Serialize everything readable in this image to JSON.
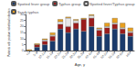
{
  "chart_data": {
    "type": "bar",
    "stacked": true,
    "categories": [
      "<5",
      "5-9",
      "10-14",
      "15-19",
      "20-24",
      "25-29",
      "30-34",
      "35-39",
      "40-44",
      "45-49",
      "50-54",
      "55-59",
      "60-64",
      "≥65"
    ],
    "series": [
      {
        "name": "Spotted fever group",
        "color": "#1a3a6b",
        "values": [
          0,
          3,
          5,
          8,
          18,
          15,
          18,
          16,
          20,
          12,
          14,
          18,
          14,
          12
        ]
      },
      {
        "name": "Typhus group",
        "color": "#9b1c1c",
        "values": [
          0,
          2,
          3,
          4,
          4,
          5,
          5,
          10,
          7,
          5,
          5,
          4,
          4,
          3
        ]
      },
      {
        "name": "Spotted fever/Typhus group",
        "color": "#e8e8e8",
        "values": [
          0,
          0,
          1,
          1,
          2,
          7,
          2,
          0,
          2,
          1,
          1,
          1,
          1,
          1
        ]
      },
      {
        "name": "Scrub typhus",
        "color": "#e8a020",
        "values": [
          1,
          1,
          1,
          2,
          2,
          1,
          1,
          1,
          1,
          1,
          3,
          4,
          4,
          3
        ]
      }
    ],
    "xlabel": "Age, y",
    "ylabel": "Patients with positive rickettsial infection",
    "ylim": [
      0,
      30
    ],
    "yticks": [
      0,
      5,
      10,
      15,
      20,
      25,
      30
    ],
    "grid": false,
    "legend": "upper left"
  }
}
